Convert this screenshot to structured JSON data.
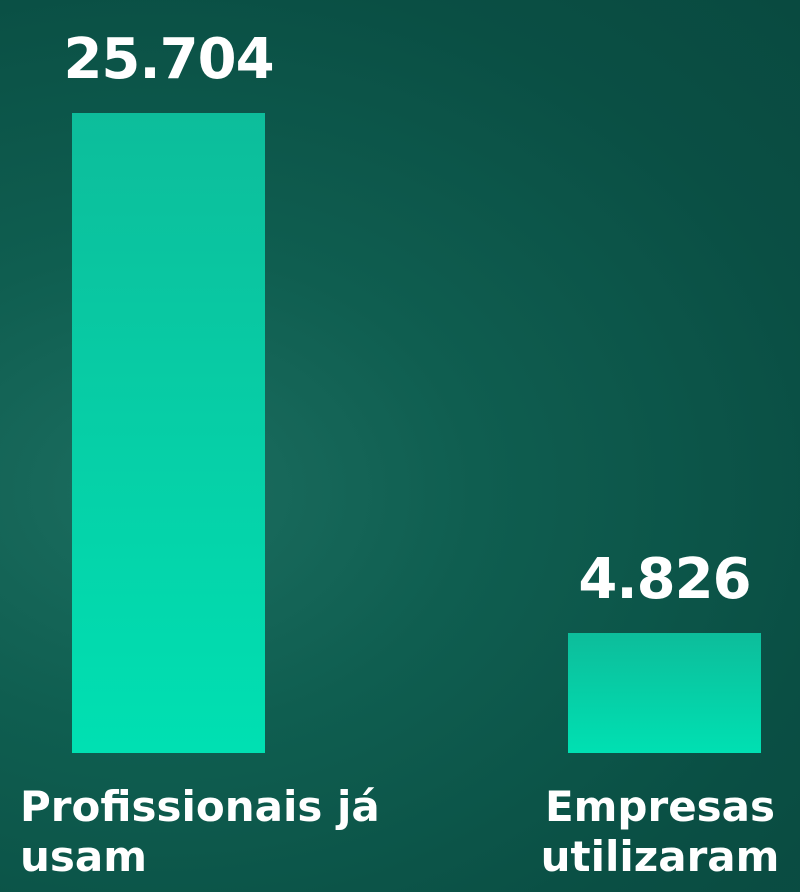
{
  "chart_data": {
    "type": "bar",
    "categories": [
      "Profissionais já usam",
      "Empresas utilizaram"
    ],
    "values": [
      25704,
      4826
    ],
    "value_labels": [
      "25.704",
      "4.826"
    ],
    "color": "#00e0b2",
    "ylim": [
      0,
      25704
    ]
  }
}
